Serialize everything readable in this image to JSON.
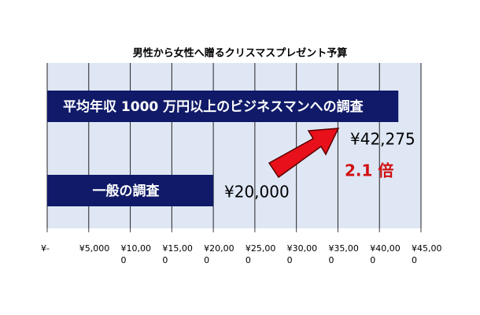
{
  "chart_data": {
    "type": "hbar",
    "title": "男性から女性へ贈るクリスマスプレゼント予算",
    "categories": [
      "平均年収 1000 万円以上のビジネスマンへの調査",
      "一般の調査"
    ],
    "values": [
      42275,
      20000
    ],
    "value_labels": [
      "¥42,275",
      "¥20,000"
    ],
    "color": "#101a68",
    "xlim": [
      0,
      45000
    ],
    "xticks": [
      {
        "value": 0,
        "label": "¥-"
      },
      {
        "value": 5000,
        "label": "¥5,000"
      },
      {
        "value": 10000,
        "label": "¥10,000"
      },
      {
        "value": 15000,
        "label": "¥15,000"
      },
      {
        "value": 20000,
        "label": "¥20,000"
      },
      {
        "value": 25000,
        "label": "¥25,000"
      },
      {
        "value": 30000,
        "label": "¥30,000"
      },
      {
        "value": 35000,
        "label": "¥35,000"
      },
      {
        "value": 40000,
        "label": "¥40,000"
      },
      {
        "value": 45000,
        "label": "¥45,000"
      }
    ],
    "grid": true,
    "annotation": "2.1 倍"
  }
}
